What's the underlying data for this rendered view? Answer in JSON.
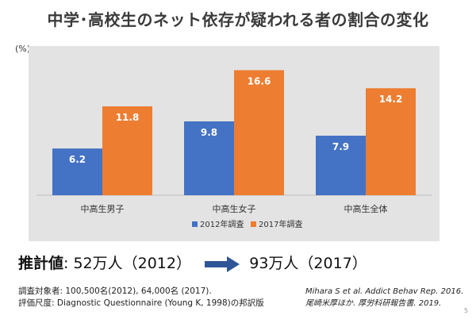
{
  "title": "中学･高校生のネット依存が疑われる者の割合の変化",
  "unit_label": "(%)",
  "chart_data": {
    "type": "bar",
    "categories": [
      "中高生男子",
      "中高生女子",
      "中高生全体"
    ],
    "series": [
      {
        "name": "2012年調査",
        "values": [
          6.2,
          9.8,
          7.9
        ],
        "color": "#4472c4"
      },
      {
        "name": "2017年調査",
        "values": [
          11.8,
          16.6,
          14.2
        ],
        "color": "#ed7d31"
      }
    ],
    "ylim": [
      0,
      20
    ],
    "legend_position": "bottom",
    "grid": false
  },
  "summary": {
    "label": "推計値",
    "value_2012": ": 52万人（2012）",
    "value_2017": "93万人（2017）"
  },
  "notes": {
    "line1": "調査対象者: 100,500名(2012), 64,000名 (2017).",
    "line2": "評価尺度: Diagnostic Questionnaire (Young K, 1998)の邦訳版"
  },
  "references": {
    "ref1": "Mihara S et al. Addict Behav Rep. 2016.",
    "ref2": "尾崎米厚ほか. 厚労科研報告書. 2019."
  },
  "page_number": "5",
  "colors": {
    "arrow": "#2f5597"
  }
}
